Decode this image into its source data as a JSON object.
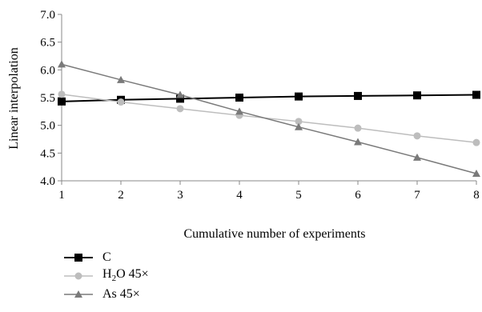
{
  "chart_data": {
    "type": "line",
    "xlabel": "Cumulative number of experiments",
    "ylabel": "Linear interpolation",
    "x": [
      1,
      2,
      3,
      4,
      5,
      6,
      7,
      8
    ],
    "xlim": [
      1,
      8
    ],
    "ylim": [
      4.0,
      7.0
    ],
    "yticks": [
      "4.0",
      "4.5",
      "5.0",
      "5.5",
      "6.0",
      "6.5",
      "7.0"
    ],
    "xticks": [
      "1",
      "2",
      "3",
      "4",
      "5",
      "6",
      "7",
      "8"
    ],
    "grid": false,
    "legend_position": "bottom-left",
    "series": [
      {
        "name": "C",
        "marker": "square",
        "color": "#000000",
        "values": [
          5.43,
          5.46,
          5.48,
          5.5,
          5.52,
          5.53,
          5.54,
          5.55
        ]
      },
      {
        "name": "H2O 45×",
        "name_parts": {
          "base": "H",
          "sub": "2",
          "rest": "O 45×"
        },
        "marker": "circle",
        "color": "#bdbdbd",
        "values": [
          5.56,
          5.42,
          5.3,
          5.18,
          5.07,
          4.95,
          4.81,
          4.69
        ]
      },
      {
        "name": "As 45×",
        "marker": "triangle",
        "color": "#7a7a7a",
        "values": [
          6.1,
          5.82,
          5.55,
          5.25,
          4.97,
          4.7,
          4.42,
          4.13
        ]
      }
    ]
  }
}
